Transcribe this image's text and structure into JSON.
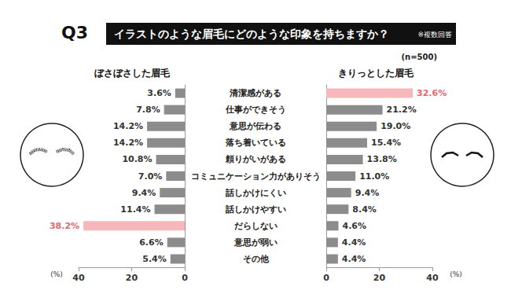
{
  "chart_data": {
    "type": "bar",
    "orientation": "horizontal",
    "title": "イラストのような眉毛にどのような印象を持ちますか？",
    "annotations": [
      "Q3",
      "※複数回答",
      "(n=500)"
    ],
    "xlabel": "(%)",
    "categories": [
      "清潔感がある",
      "仕事ができそう",
      "意思が伝わる",
      "落ち着いている",
      "頼りがいがある",
      "コミュニケーション力がありそう",
      "話しかけにくい",
      "話しかけやすい",
      "だらしない",
      "意思が弱い",
      "その他"
    ],
    "series": [
      {
        "name": "ぼさぼさした眉毛",
        "color": "#8c8c8c",
        "colors": [
          "#8c8c8c",
          "#8c8c8c",
          "#8c8c8c",
          "#8c8c8c",
          "#8c8c8c",
          "#8c8c8c",
          "#8c8c8c",
          "#8c8c8c",
          "#f7b8bc",
          "#8c8c8c",
          "#8c8c8c"
        ],
        "values": [
          3.6,
          7.8,
          14.2,
          14.2,
          10.8,
          7.0,
          9.4,
          11.4,
          38.2,
          6.6,
          5.4
        ],
        "value_labels": [
          "3.6%",
          "7.8%",
          "14.2%",
          "14.2%",
          "10.8%",
          "7.0%",
          "9.4%",
          "11.4%",
          "38.2%",
          "6.6%",
          "5.4%"
        ]
      },
      {
        "name": "きりっとした眉毛",
        "color": "#8c8c8c",
        "colors": [
          "#f7b8bc",
          "#8c8c8c",
          "#8c8c8c",
          "#8c8c8c",
          "#8c8c8c",
          "#8c8c8c",
          "#8c8c8c",
          "#8c8c8c",
          "#8c8c8c",
          "#8c8c8c",
          "#8c8c8c"
        ],
        "values": [
          32.6,
          21.2,
          19.0,
          15.4,
          13.8,
          11.0,
          9.4,
          8.4,
          4.6,
          4.4,
          4.4
        ],
        "value_labels": [
          "32.6%",
          "21.2%",
          "19.0%",
          "15.4%",
          "13.8%",
          "11.0%",
          "9.4%",
          "8.4%",
          "4.6%",
          "4.4%",
          "4.4%"
        ]
      }
    ],
    "xlim": [
      0,
      40
    ],
    "xticks": [
      0,
      20,
      40
    ],
    "data_labels": true,
    "grid": false
  }
}
